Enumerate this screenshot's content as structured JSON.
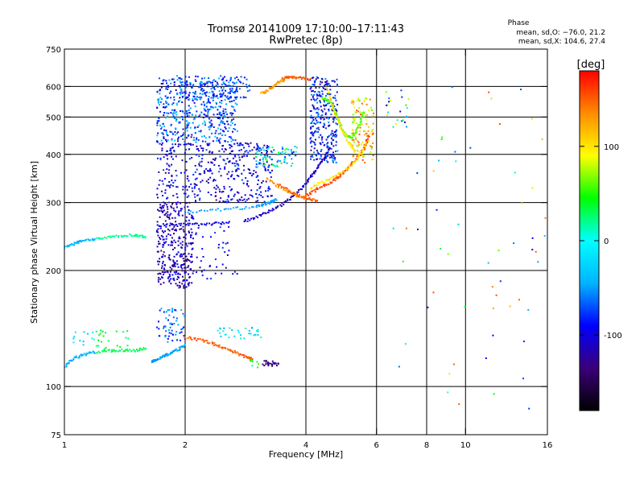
{
  "chart_data": {
    "type": "scatter",
    "title": "Tromsø 20141009 17:10:00–17:11:43",
    "subtitle": "RwPretec (8p)",
    "xlabel": "Frequency [MHz]",
    "ylabel": "Stationary phase Virtual Height [km]",
    "x_scale": "log",
    "y_scale": "log",
    "xlim": [
      1,
      16
    ],
    "ylim": [
      75,
      750
    ],
    "x_ticks": [
      1,
      2,
      4,
      6,
      8,
      10,
      16
    ],
    "y_ticks": [
      75,
      100,
      200,
      300,
      400,
      500,
      600,
      750
    ],
    "x_gridlines": [
      2,
      4,
      6,
      8,
      10
    ],
    "y_gridlines": [
      100,
      200,
      300,
      400,
      500,
      600
    ],
    "grid": true,
    "colorbar": {
      "label": "[deg]",
      "ticks": [
        100,
        0,
        -100
      ],
      "range": [
        -180,
        180
      ],
      "colors": [
        "#000000",
        "#3a007a",
        "#0000ff",
        "#00b4ff",
        "#00ffff",
        "#00ff00",
        "#ffff00",
        "#ff8c00",
        "#ff0000"
      ]
    },
    "stats": {
      "heading": "Phase",
      "line_o": "mean, sd,O: −76.0, 21.2",
      "line_x": "mean, sd,X: 104.6, 27.4"
    },
    "traces": [
      {
        "freq": [
          1.0,
          1.05,
          1.1,
          1.2
        ],
        "height": [
          229,
          234,
          238,
          242
        ],
        "phase": -40
      },
      {
        "freq": [
          1.2,
          1.35,
          1.5,
          1.6
        ],
        "height": [
          242,
          246,
          247,
          244
        ],
        "phase": 20
      },
      {
        "freq": [
          1.0,
          1.05,
          1.12,
          1.2
        ],
        "height": [
          112,
          118,
          121,
          123
        ],
        "phase": -45
      },
      {
        "freq": [
          1.2,
          1.35,
          1.5,
          1.6
        ],
        "height": [
          123,
          124,
          124,
          126
        ],
        "phase": 30
      },
      {
        "freq": [
          1.65,
          1.72,
          1.8,
          1.9,
          2.0
        ],
        "height": [
          116,
          118,
          121,
          124,
          128
        ],
        "phase": -50
      },
      {
        "freq": [
          2.0,
          2.2,
          2.4,
          2.6,
          2.8,
          2.95
        ],
        "height": [
          134,
          132,
          128,
          124,
          120,
          118
        ],
        "phase": 150
      },
      {
        "freq": [
          1.7,
          2.0,
          2.3,
          2.6
        ],
        "height": [
          262,
          263,
          264,
          266
        ],
        "phase": -100
      },
      {
        "freq": [
          2.0,
          2.5,
          3.0,
          3.2,
          3.4
        ],
        "height": [
          283,
          288,
          292,
          298,
          306
        ],
        "phase": -50
      },
      {
        "freq": [
          2.8,
          3.1,
          3.4,
          3.7,
          4.0,
          4.2,
          4.4,
          4.6
        ],
        "height": [
          268,
          278,
          292,
          310,
          335,
          360,
          385,
          420
        ],
        "phase": -110
      },
      {
        "freq": [
          4.0,
          4.3,
          4.7,
          5.0,
          5.3,
          5.6,
          5.75
        ],
        "height": [
          312,
          326,
          343,
          362,
          385,
          415,
          450
        ],
        "phase": 160
      },
      {
        "freq": [
          4.1,
          4.5,
          5.0,
          5.4,
          5.7
        ],
        "height": [
          328,
          342,
          362,
          392,
          430
        ],
        "phase": 100
      },
      {
        "freq": [
          3.2,
          3.5,
          3.8,
          4.1
        ],
        "height": [
          346,
          326,
          313,
          306
        ],
        "phase": 130
      },
      {
        "freq": [
          3.4,
          3.7,
          4.0,
          4.3
        ],
        "height": [
          336,
          318,
          308,
          303
        ],
        "phase": 150
      },
      {
        "freq": [
          3.1,
          3.25,
          3.4,
          3.55
        ],
        "height": [
          575,
          590,
          612,
          625
        ],
        "phase": 130
      },
      {
        "freq": [
          3.5,
          3.7,
          3.9,
          4.1
        ],
        "height": [
          630,
          634,
          632,
          624
        ],
        "phase": 150
      },
      {
        "freq": [
          4.4,
          4.6,
          4.8,
          5.0,
          5.2,
          5.4,
          5.6
        ],
        "height": [
          560,
          550,
          500,
          450,
          440,
          470,
          520
        ],
        "phase": 60
      },
      {
        "freq": [
          4.5,
          4.7,
          4.9,
          5.1,
          5.3
        ],
        "height": [
          600,
          520,
          470,
          430,
          410
        ],
        "phase": 100
      }
    ],
    "clusters": [
      {
        "f": [
          1.7,
          2.7
        ],
        "h": [
          430,
          640
        ],
        "n": 520,
        "phase": [
          -110,
          -30
        ]
      },
      {
        "f": [
          1.7,
          3.3
        ],
        "h": [
          300,
          430
        ],
        "n": 420,
        "phase": [
          -130,
          -70
        ]
      },
      {
        "f": [
          1.7,
          2.1
        ],
        "h": [
          180,
          300
        ],
        "n": 320,
        "phase": [
          -140,
          -90
        ]
      },
      {
        "f": [
          2.1,
          2.7
        ],
        "h": [
          190,
          260
        ],
        "n": 40,
        "phase": [
          -110,
          -70
        ]
      },
      {
        "f": [
          2.0,
          2.9
        ],
        "h": [
          560,
          640
        ],
        "n": 90,
        "phase": [
          -90,
          -60
        ]
      },
      {
        "f": [
          3.0,
          3.8
        ],
        "h": [
          370,
          420
        ],
        "n": 80,
        "phase": [
          -90,
          60
        ]
      },
      {
        "f": [
          4.1,
          4.8
        ],
        "h": [
          380,
          640
        ],
        "n": 300,
        "phase": [
          -130,
          -50
        ]
      },
      {
        "f": [
          5.2,
          5.9
        ],
        "h": [
          380,
          560
        ],
        "n": 110,
        "phase": [
          60,
          160
        ]
      },
      {
        "f": [
          1.7,
          2.0
        ],
        "h": [
          130,
          160
        ],
        "n": 60,
        "phase": [
          -100,
          -40
        ]
      },
      {
        "f": [
          2.4,
          3.1
        ],
        "h": [
          133,
          142
        ],
        "n": 30,
        "phase": [
          -60,
          20
        ]
      },
      {
        "f": [
          1.05,
          1.2
        ],
        "h": [
          128,
          140
        ],
        "n": 12,
        "phase": [
          -40,
          10
        ]
      },
      {
        "f": [
          1.2,
          1.45
        ],
        "h": [
          124,
          140
        ],
        "n": 30,
        "phase": [
          20,
          50
        ]
      },
      {
        "f": [
          6.2,
          7.2
        ],
        "h": [
          470,
          610
        ],
        "n": 20,
        "phase": [
          -110,
          140
        ]
      },
      {
        "f": [
          6.2,
          16.0
        ],
        "h": [
          85,
          640
        ],
        "n": 60,
        "phase": [
          -110,
          160
        ]
      },
      {
        "f": [
          3.1,
          3.45
        ],
        "h": [
          113,
          117
        ],
        "n": 22,
        "phase": [
          -150,
          -120
        ]
      },
      {
        "f": [
          2.9,
          3.05
        ],
        "h": [
          112,
          118
        ],
        "n": 10,
        "phase": [
          20,
          60
        ]
      }
    ]
  }
}
